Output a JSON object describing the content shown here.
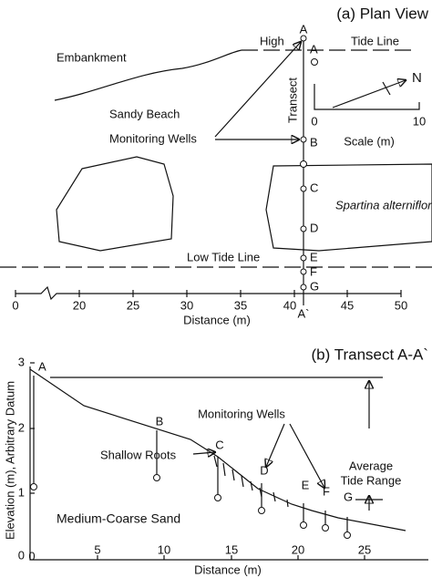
{
  "plan_view": {
    "title": "(a) Plan View",
    "labels": {
      "embankment": "Embankment",
      "high": "High",
      "tide_line": "Tide Line",
      "north": "N",
      "transect": "Transect",
      "sandy_beach": "Sandy Beach",
      "monitoring_wells": "Monitoring Wells",
      "spartina": "Spartina alterniflora",
      "low_tide_line": "Low Tide Line"
    },
    "points": [
      "A",
      "A",
      "B",
      "C",
      "D",
      "E",
      "F",
      "G",
      "A`"
    ],
    "scale": {
      "label": "Scale (m)",
      "ticks": [
        0,
        10
      ]
    },
    "distance": {
      "label": "Distance (m)",
      "ticks": [
        0,
        20,
        25,
        30,
        35,
        40,
        45,
        50
      ]
    }
  },
  "transect": {
    "title": "(b) Transect A-A`",
    "y_label": "Elevation (m), Arbitrary Datum",
    "x_label": "Distance (m)",
    "yticks": [
      0,
      1,
      2,
      3
    ],
    "xticks": [
      0,
      5,
      10,
      15,
      20,
      25
    ],
    "points": [
      "A",
      "B",
      "C",
      "D",
      "E",
      "F",
      "G"
    ],
    "labels": {
      "monitoring_wells": "Monitoring Wells",
      "shallow_roots": "Shallow Roots",
      "tide_range_1": "Average",
      "tide_range_2": "Tide Range",
      "sand": "Medium-Coarse Sand"
    }
  }
}
